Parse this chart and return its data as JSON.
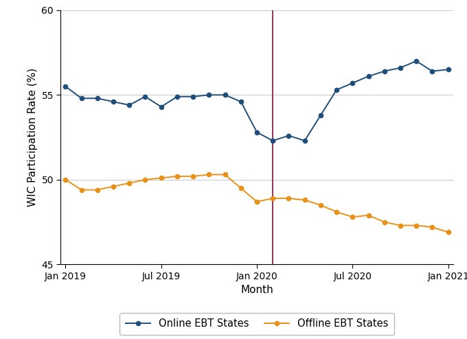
{
  "title": "",
  "xlabel": "Month",
  "ylabel": "WIC Participation Rate (%)",
  "ylim": [
    45,
    60
  ],
  "yticks": [
    45,
    50,
    55,
    60
  ],
  "vline_x": 13,
  "online_color": "#1F4E79",
  "offline_color": "#E8911A",
  "vline_color": "#8B2252",
  "background_color": "#ffffff",
  "grid_color": "#cccccc",
  "months_idx": [
    0,
    1,
    2,
    3,
    4,
    5,
    6,
    7,
    8,
    9,
    10,
    11,
    12,
    13,
    14,
    15,
    16,
    17,
    18,
    19,
    20,
    21,
    22,
    23,
    24
  ],
  "online_values": [
    55.5,
    54.8,
    54.8,
    54.6,
    54.4,
    54.9,
    54.3,
    54.9,
    54.9,
    55.0,
    55.0,
    54.6,
    52.8,
    52.3,
    52.6,
    52.3,
    53.8,
    55.3,
    55.7,
    56.1,
    56.4,
    56.6,
    57.0,
    56.4,
    56.5
  ],
  "offline_values": [
    50.0,
    49.4,
    49.4,
    49.6,
    49.8,
    50.0,
    50.1,
    50.2,
    50.2,
    50.3,
    50.3,
    49.5,
    48.7,
    48.9,
    48.9,
    48.8,
    48.5,
    48.1,
    47.8,
    47.9,
    47.5,
    47.3,
    47.3,
    47.2,
    46.9
  ],
  "legend_online": "Online EBT States",
  "legend_offline": "Offline EBT States",
  "xtick_labels": [
    "Jan 2019",
    "Jul 2019",
    "Jan 2020",
    "Jul 2020",
    "Jan 2021"
  ],
  "xtick_positions": [
    0,
    6,
    12,
    18,
    24
  ],
  "marker_size": 4.5,
  "line_width": 1.4,
  "figsize": [
    6.8,
    4.94
  ],
  "dpi": 100
}
